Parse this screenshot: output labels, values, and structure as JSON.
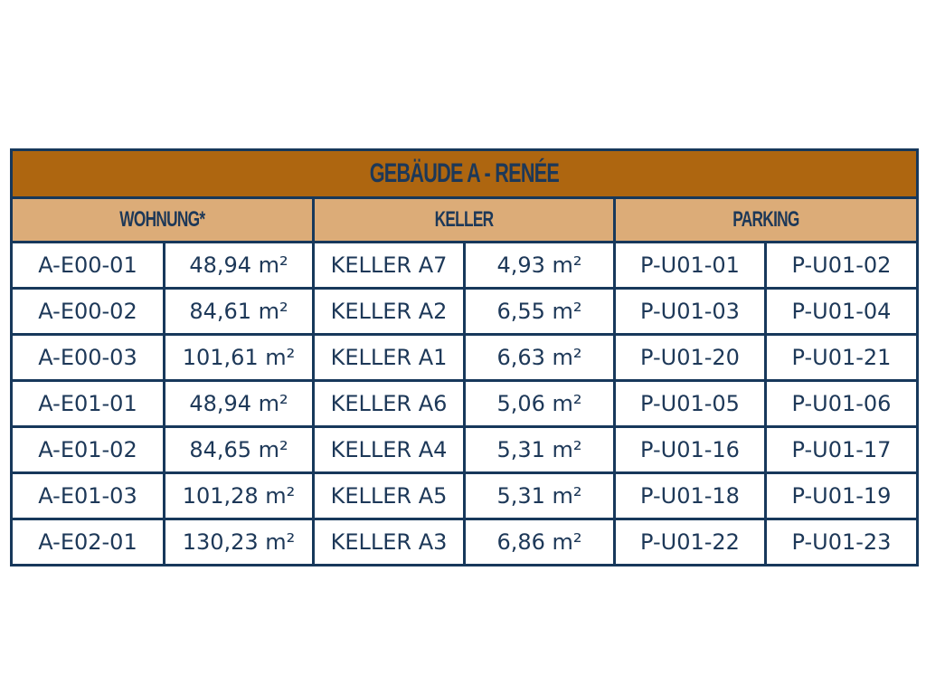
{
  "title": "GEBÄUDE A - RENÉE",
  "groups": [
    "WOHNUNG*",
    "KELLER",
    "PARKING"
  ],
  "colors": {
    "border": "#17385b",
    "title_bg": "#ae6610",
    "header_bg": "#dcac78",
    "text": "#1d3858"
  },
  "rows": [
    [
      "A-E00-01",
      "48,94 m²",
      "KELLER A7",
      "4,93 m²",
      "P-U01-01",
      "P-U01-02"
    ],
    [
      "A-E00-02",
      "84,61 m²",
      "KELLER A2",
      "6,55 m²",
      "P-U01-03",
      "P-U01-04"
    ],
    [
      "A-E00-03",
      "101,61 m²",
      "KELLER A1",
      "6,63 m²",
      "P-U01-20",
      "P-U01-21"
    ],
    [
      "A-E01-01",
      "48,94 m²",
      "KELLER A6",
      "5,06 m²",
      "P-U01-05",
      "P-U01-06"
    ],
    [
      "A-E01-02",
      "84,65 m²",
      "KELLER A4",
      "5,31 m²",
      "P-U01-16",
      "P-U01-17"
    ],
    [
      "A-E01-03",
      "101,28 m²",
      "KELLER A5",
      "5,31 m²",
      "P-U01-18",
      "P-U01-19"
    ],
    [
      "A-E02-01",
      "130,23 m²",
      "KELLER A3",
      "6,86 m²",
      "P-U01-22",
      "P-U01-23"
    ]
  ]
}
